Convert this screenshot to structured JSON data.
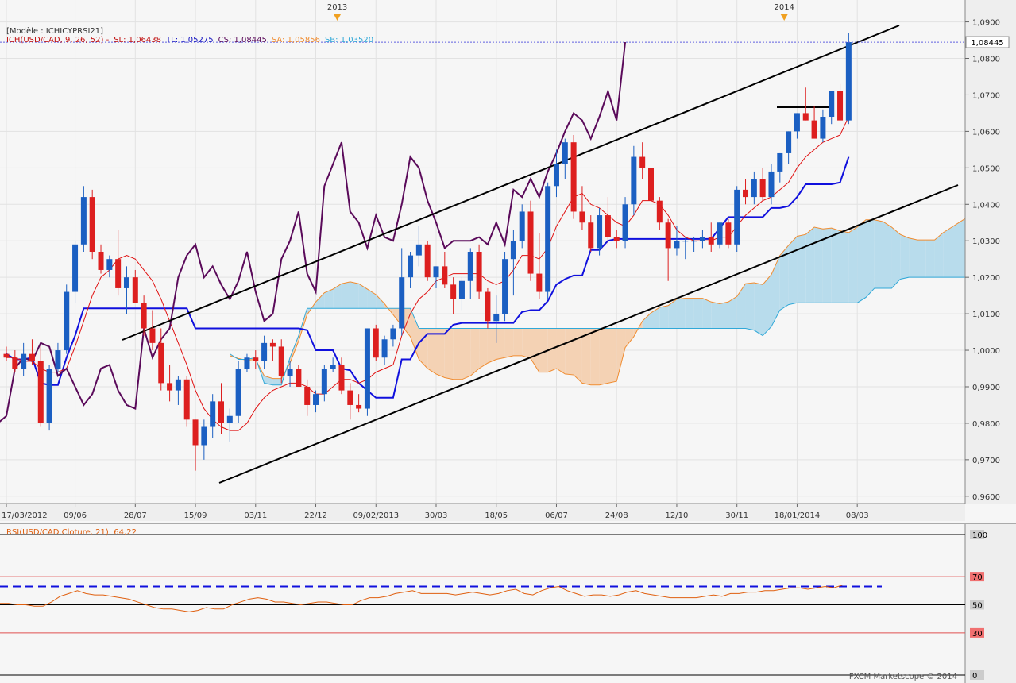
{
  "header": {
    "model": "[Modèle : ICHICYPRSI21]",
    "ichimoku_label": "ICH(USD/CAD, 9, 26, 52) -",
    "sl": "SL: 1,06438",
    "tl": "TL: 1,05275",
    "cs": "CS: 1,08445",
    "sa": "SA: 1,05856",
    "sb": "SB: 1,03520"
  },
  "rsi_header": "RSI(USD/CAD.Cloture, 21): 64,22",
  "watermark": "FXCM Marketscope © 2014",
  "colors": {
    "up": "#1b5fc2",
    "down": "#dd1f1f",
    "tenkan": "#e01010",
    "kijun": "#1010dd",
    "chikou": "#5a0a5a",
    "senkou_a": "#f08c30",
    "senkou_b": "#30a8d8",
    "cloud_bull": "#b8dcec",
    "cloud_bear": "#f4d2b4",
    "rsi": "#e06010"
  },
  "chart_data": [
    {
      "type": "candlestick",
      "name": "USD/CAD weekly, Ichimoku",
      "y_range": [
        0.958,
        1.096
      ],
      "y_ticks": [
        "1,0900",
        "1,0800",
        "1,0700",
        "1,0600",
        "1,0500",
        "1,0400",
        "1,0300",
        "1,0200",
        "1,0100",
        "1,0000",
        "0,9900",
        "0,9800",
        "0,9700",
        "0,9600"
      ],
      "y_tick_values": [
        1.09,
        1.08,
        1.07,
        1.06,
        1.05,
        1.04,
        1.03,
        1.02,
        1.01,
        1.0,
        0.99,
        0.98,
        0.97,
        0.96
      ],
      "x_labels": [
        "17/03/2012",
        "09/06",
        "28/07",
        "15/09",
        "03/11",
        "22/12",
        "09/02/2013",
        "30/03",
        "18/05",
        "06/07",
        "24/08",
        "12/10",
        "30/11",
        "18/01/2014",
        "08/03"
      ],
      "x_label_bar_index": [
        0,
        8,
        15,
        22,
        29,
        36,
        43,
        50,
        57,
        64,
        71,
        78,
        85,
        92,
        99
      ],
      "year_markers": [
        {
          "label": "2013",
          "index": 38.5
        },
        {
          "label": "2014",
          "index": 90.5
        }
      ],
      "current_price": 1.08445,
      "current_price_label": "1,08445",
      "candles": [
        [
          0.999,
          1.001,
          0.997,
          0.998
        ],
        [
          0.998,
          1.0,
          0.994,
          0.995
        ],
        [
          0.995,
          1.002,
          0.993,
          0.999
        ],
        [
          0.999,
          1.003,
          0.996,
          0.997
        ],
        [
          0.997,
          1.001,
          0.979,
          0.98
        ],
        [
          0.98,
          0.996,
          0.978,
          0.995
        ],
        [
          0.995,
          1.002,
          0.994,
          1.0
        ],
        [
          1.0,
          1.018,
          0.999,
          1.016
        ],
        [
          1.016,
          1.03,
          1.013,
          1.029
        ],
        [
          1.029,
          1.045,
          1.027,
          1.042
        ],
        [
          1.042,
          1.044,
          1.025,
          1.027
        ],
        [
          1.027,
          1.029,
          1.021,
          1.022
        ],
        [
          1.022,
          1.026,
          1.02,
          1.025
        ],
        [
          1.025,
          1.033,
          1.015,
          1.017
        ],
        [
          1.017,
          1.023,
          1.01,
          1.02
        ],
        [
          1.02,
          1.022,
          1.013,
          1.013
        ],
        [
          1.013,
          1.015,
          1.004,
          1.006
        ],
        [
          1.006,
          1.011,
          1.0,
          1.002
        ],
        [
          1.002,
          1.006,
          0.989,
          0.991
        ],
        [
          0.991,
          0.996,
          0.986,
          0.989
        ],
        [
          0.989,
          0.993,
          0.985,
          0.992
        ],
        [
          0.992,
          0.993,
          0.979,
          0.981
        ],
        [
          0.981,
          0.981,
          0.967,
          0.974
        ],
        [
          0.974,
          0.981,
          0.97,
          0.979
        ],
        [
          0.979,
          0.988,
          0.976,
          0.986
        ],
        [
          0.986,
          0.991,
          0.977,
          0.98
        ],
        [
          0.98,
          0.984,
          0.975,
          0.982
        ],
        [
          0.982,
          0.997,
          0.98,
          0.995
        ],
        [
          0.995,
          0.999,
          0.994,
          0.998
        ],
        [
          0.998,
          1.0,
          0.995,
          0.997
        ],
        [
          0.997,
          1.004,
          0.995,
          1.002
        ],
        [
          1.002,
          1.003,
          0.997,
          1.001
        ],
        [
          1.001,
          1.003,
          0.991,
          0.993
        ],
        [
          0.993,
          0.997,
          0.99,
          0.995
        ],
        [
          0.995,
          0.996,
          0.99,
          0.99
        ],
        [
          0.99,
          0.992,
          0.982,
          0.985
        ],
        [
          0.985,
          0.989,
          0.983,
          0.988
        ],
        [
          0.988,
          0.996,
          0.986,
          0.995
        ],
        [
          0.995,
          0.998,
          0.994,
          0.996
        ],
        [
          0.996,
          0.998,
          0.988,
          0.989
        ],
        [
          0.989,
          0.991,
          0.981,
          0.985
        ],
        [
          0.985,
          0.988,
          0.983,
          0.984
        ],
        [
          0.984,
          1.006,
          0.982,
          1.006
        ],
        [
          1.006,
          1.007,
          0.997,
          0.998
        ],
        [
          0.998,
          1.004,
          0.996,
          1.003
        ],
        [
          1.003,
          1.007,
          1.001,
          1.006
        ],
        [
          1.006,
          1.028,
          1.004,
          1.02
        ],
        [
          1.02,
          1.027,
          1.017,
          1.026
        ],
        [
          1.026,
          1.034,
          1.023,
          1.029
        ],
        [
          1.029,
          1.03,
          1.019,
          1.02
        ],
        [
          1.02,
          1.023,
          1.017,
          1.023
        ],
        [
          1.023,
          1.027,
          1.017,
          1.018
        ],
        [
          1.018,
          1.02,
          1.01,
          1.014
        ],
        [
          1.014,
          1.02,
          1.011,
          1.019
        ],
        [
          1.019,
          1.028,
          1.014,
          1.027
        ],
        [
          1.027,
          1.029,
          1.014,
          1.016
        ],
        [
          1.016,
          1.017,
          1.006,
          1.008
        ],
        [
          1.008,
          1.015,
          1.002,
          1.01
        ],
        [
          1.01,
          1.027,
          1.008,
          1.025
        ],
        [
          1.025,
          1.033,
          1.015,
          1.03
        ],
        [
          1.03,
          1.04,
          1.028,
          1.038
        ],
        [
          1.038,
          1.041,
          1.019,
          1.021
        ],
        [
          1.021,
          1.032,
          1.014,
          1.016
        ],
        [
          1.016,
          1.046,
          1.014,
          1.045
        ],
        [
          1.045,
          1.055,
          1.042,
          1.051
        ],
        [
          1.051,
          1.058,
          1.047,
          1.057
        ],
        [
          1.057,
          1.059,
          1.036,
          1.038
        ],
        [
          1.038,
          1.045,
          1.033,
          1.035
        ],
        [
          1.035,
          1.037,
          1.027,
          1.028
        ],
        [
          1.028,
          1.039,
          1.026,
          1.037
        ],
        [
          1.037,
          1.042,
          1.029,
          1.031
        ],
        [
          1.031,
          1.033,
          1.028,
          1.03
        ],
        [
          1.03,
          1.042,
          1.028,
          1.04
        ],
        [
          1.04,
          1.056,
          1.037,
          1.053
        ],
        [
          1.053,
          1.057,
          1.047,
          1.05
        ],
        [
          1.05,
          1.056,
          1.039,
          1.041
        ],
        [
          1.041,
          1.042,
          1.033,
          1.035
        ],
        [
          1.035,
          1.036,
          1.019,
          1.028
        ],
        [
          1.028,
          1.034,
          1.026,
          1.03
        ],
        [
          1.03,
          1.031,
          1.025,
          1.03
        ],
        [
          1.03,
          1.031,
          1.027,
          1.03
        ],
        [
          1.03,
          1.033,
          1.028,
          1.031
        ],
        [
          1.031,
          1.035,
          1.027,
          1.029
        ],
        [
          1.029,
          1.035,
          1.028,
          1.035
        ],
        [
          1.035,
          1.036,
          1.028,
          1.029
        ],
        [
          1.029,
          1.045,
          1.027,
          1.044
        ],
        [
          1.044,
          1.047,
          1.04,
          1.042
        ],
        [
          1.042,
          1.049,
          1.04,
          1.047
        ],
        [
          1.047,
          1.05,
          1.041,
          1.042
        ],
        [
          1.042,
          1.051,
          1.04,
          1.049
        ],
        [
          1.049,
          1.054,
          1.046,
          1.054
        ],
        [
          1.054,
          1.06,
          1.051,
          1.06
        ],
        [
          1.06,
          1.065,
          1.058,
          1.065
        ],
        [
          1.065,
          1.072,
          1.063,
          1.063
        ],
        [
          1.063,
          1.067,
          1.059,
          1.058
        ],
        [
          1.058,
          1.066,
          1.057,
          1.064
        ],
        [
          1.064,
          1.07,
          1.062,
          1.071
        ],
        [
          1.071,
          1.073,
          1.063,
          1.063
        ],
        [
          1.063,
          1.087,
          1.062,
          1.08445
        ]
      ],
      "tenkan": [
        0.998,
        0.998,
        0.997,
        0.997,
        0.995,
        0.994,
        0.994,
        0.995,
        1.001,
        1.008,
        1.015,
        1.02,
        1.022,
        1.025,
        1.026,
        1.025,
        1.022,
        1.019,
        1.014,
        1.008,
        1.002,
        0.996,
        0.989,
        0.984,
        0.981,
        0.979,
        0.978,
        0.978,
        0.98,
        0.984,
        0.987,
        0.989,
        0.99,
        0.991,
        0.991,
        0.99,
        0.988,
        0.988,
        0.99,
        0.992,
        0.992,
        0.991,
        0.992,
        0.994,
        0.995,
        0.996,
        1.004,
        1.01,
        1.014,
        1.016,
        1.019,
        1.02,
        1.021,
        1.021,
        1.021,
        1.021,
        1.019,
        1.018,
        1.019,
        1.022,
        1.026,
        1.026,
        1.025,
        1.028,
        1.034,
        1.038,
        1.042,
        1.043,
        1.04,
        1.039,
        1.037,
        1.035,
        1.034,
        1.037,
        1.041,
        1.041,
        1.04,
        1.037,
        1.033,
        1.031,
        1.03,
        1.03,
        1.03,
        1.031,
        1.031,
        1.034,
        1.037,
        1.039,
        1.041,
        1.042,
        1.044,
        1.046,
        1.05,
        1.053,
        1.055,
        1.057,
        1.058,
        1.059,
        1.064
      ]
    },
    {
      "type": "line",
      "name": "RSI(USD/CAD.Cloture, 21)",
      "y_range": [
        0,
        100
      ],
      "y_ticks": [
        "100",
        "70",
        "50",
        "30",
        "0"
      ],
      "y_tick_values": [
        100,
        70,
        50,
        30,
        0
      ],
      "levels": [
        70,
        50,
        30
      ],
      "dashed_level": 63,
      "last_value": 64.22,
      "values": [
        51,
        51,
        50,
        50,
        49,
        49,
        52,
        56,
        58,
        60,
        58,
        57,
        57,
        56,
        55,
        54,
        52,
        50,
        48,
        47,
        47,
        46,
        45,
        46,
        48,
        47,
        47,
        50,
        52,
        54,
        55,
        54,
        52,
        52,
        51,
        50,
        51,
        52,
        52,
        51,
        50,
        50,
        53,
        55,
        55,
        56,
        58,
        59,
        60,
        58,
        58,
        58,
        58,
        57,
        58,
        59,
        58,
        57,
        58,
        60,
        61,
        58,
        57,
        60,
        62,
        63,
        60,
        58,
        56,
        57,
        57,
        56,
        57,
        59,
        60,
        58,
        57,
        56,
        55,
        55,
        55,
        55,
        56,
        57,
        56,
        58,
        58,
        59,
        59,
        60,
        60,
        61,
        62,
        62,
        61,
        62,
        63,
        62,
        64
      ]
    }
  ]
}
